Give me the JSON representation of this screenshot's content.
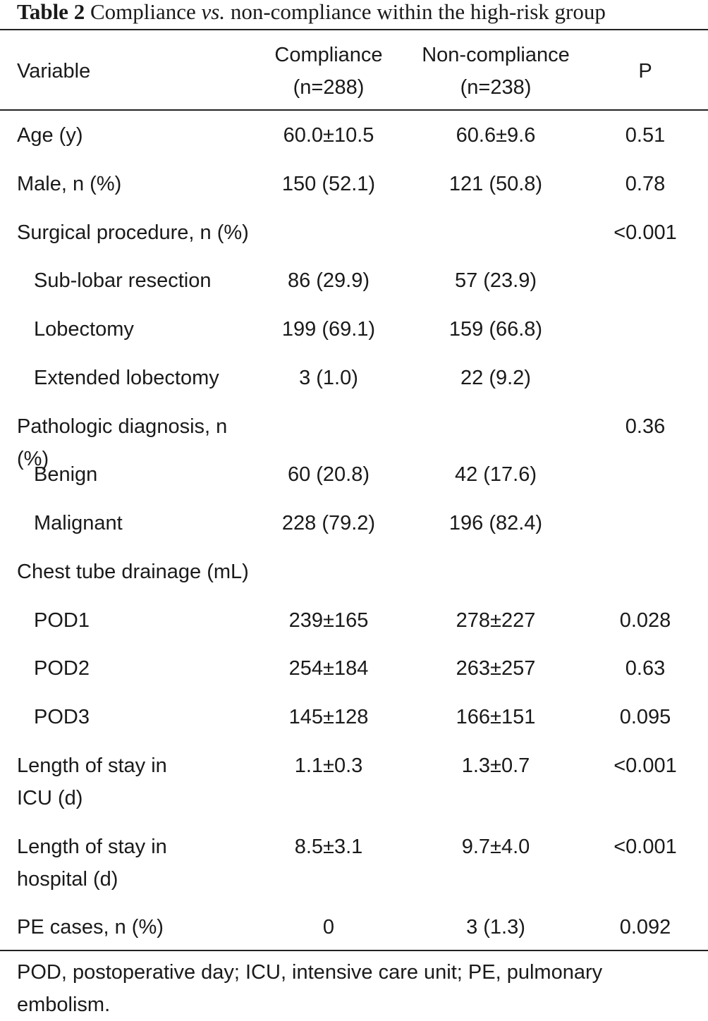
{
  "caption": {
    "label": "Table 2",
    "text_before": "Compliance",
    "vs": "vs.",
    "text_after": "non-compliance within the high-risk group"
  },
  "header": {
    "variable": "Variable",
    "compliance_line1": "Compliance",
    "compliance_line2": "(n=288)",
    "noncompliance_line1": "Non-compliance",
    "noncompliance_line2": "(n=238)",
    "p": "P"
  },
  "rows": [
    {
      "variable": "Age (y)",
      "compliance": "60.0±10.5",
      "noncompliance": "60.6±9.6",
      "p": "0.51"
    },
    {
      "variable": "Male, n (%)",
      "compliance": "150 (52.1)",
      "noncompliance": "121 (50.8)",
      "p": "0.78"
    },
    {
      "variable": "Surgical procedure, n (%)",
      "compliance": "",
      "noncompliance": "",
      "p": "<0.001"
    },
    {
      "variable": "Sub-lobar resection",
      "compliance": "86 (29.9)",
      "noncompliance": "57 (23.9)",
      "p": ""
    },
    {
      "variable": "Lobectomy",
      "compliance": "199 (69.1)",
      "noncompliance": "159 (66.8)",
      "p": ""
    },
    {
      "variable": "Extended lobectomy",
      "compliance": "3 (1.0)",
      "noncompliance": "22 (9.2)",
      "p": ""
    },
    {
      "variable": "Pathologic diagnosis, n (%)",
      "compliance": "",
      "noncompliance": "",
      "p": "0.36"
    },
    {
      "variable": "Benign",
      "compliance": "60 (20.8)",
      "noncompliance": "42 (17.6)",
      "p": ""
    },
    {
      "variable": "Malignant",
      "compliance": "228 (79.2)",
      "noncompliance": "196 (82.4)",
      "p": ""
    },
    {
      "variable": "Chest tube drainage (mL)",
      "compliance": "",
      "noncompliance": "",
      "p": ""
    },
    {
      "variable": "POD1",
      "compliance": "239±165",
      "noncompliance": "278±227",
      "p": "0.028"
    },
    {
      "variable": "POD2",
      "compliance": "254±184",
      "noncompliance": "263±257",
      "p": "0.63"
    },
    {
      "variable": "POD3",
      "compliance": "145±128",
      "noncompliance": "166±151",
      "p": "0.095"
    },
    {
      "variable": "Length of stay in ICU (d)",
      "compliance": "1.1±0.3",
      "noncompliance": "1.3±0.7",
      "p": "<0.001"
    },
    {
      "variable": "Length of stay in hospital (d)",
      "compliance": "8.5±3.1",
      "noncompliance": "9.7±4.0",
      "p": "<0.001"
    },
    {
      "variable": "PE cases, n (%)",
      "compliance": "0",
      "noncompliance": "3 (1.3)",
      "p": "0.092"
    }
  ],
  "footnote": "POD, postoperative day; ICU, intensive care unit; PE, pulmonary embolism."
}
